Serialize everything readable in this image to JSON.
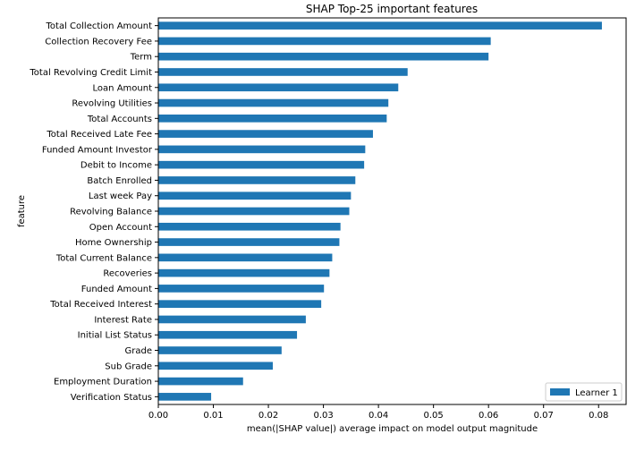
{
  "chart_data": {
    "type": "bar",
    "orientation": "horizontal",
    "title": "SHAP Top-25 important features",
    "xlabel": "mean(|SHAP value|) average impact on model output magnitude",
    "ylabel": "feature",
    "xlim": [
      0,
      0.085
    ],
    "xticks": [
      "0.00",
      "0.01",
      "0.02",
      "0.03",
      "0.04",
      "0.05",
      "0.06",
      "0.07",
      "0.08"
    ],
    "grid": false,
    "legend_position": "bottom-right",
    "categories": [
      "Total Collection Amount",
      "Collection Recovery Fee",
      "Term",
      "Total Revolving Credit Limit",
      "Loan Amount",
      "Revolving Utilities",
      "Total Accounts",
      "Total Received Late Fee",
      "Funded Amount Investor",
      "Debit to Income",
      "Batch Enrolled",
      "Last week Pay",
      "Revolving Balance",
      "Open Account",
      "Home Ownership",
      "Total Current Balance",
      "Recoveries",
      "Funded Amount",
      "Total Received Interest",
      "Interest Rate",
      "Initial List Status",
      "Grade",
      "Sub Grade",
      "Employment Duration",
      "Verification Status"
    ],
    "series": [
      {
        "name": "Learner 1",
        "color": "#1f77b4",
        "values": [
          0.0806,
          0.0604,
          0.06,
          0.0453,
          0.0436,
          0.0418,
          0.0415,
          0.039,
          0.0376,
          0.0374,
          0.0358,
          0.035,
          0.0347,
          0.0331,
          0.0329,
          0.0316,
          0.0311,
          0.0301,
          0.0296,
          0.0268,
          0.0252,
          0.0224,
          0.0208,
          0.0154,
          0.0096
        ]
      }
    ]
  }
}
